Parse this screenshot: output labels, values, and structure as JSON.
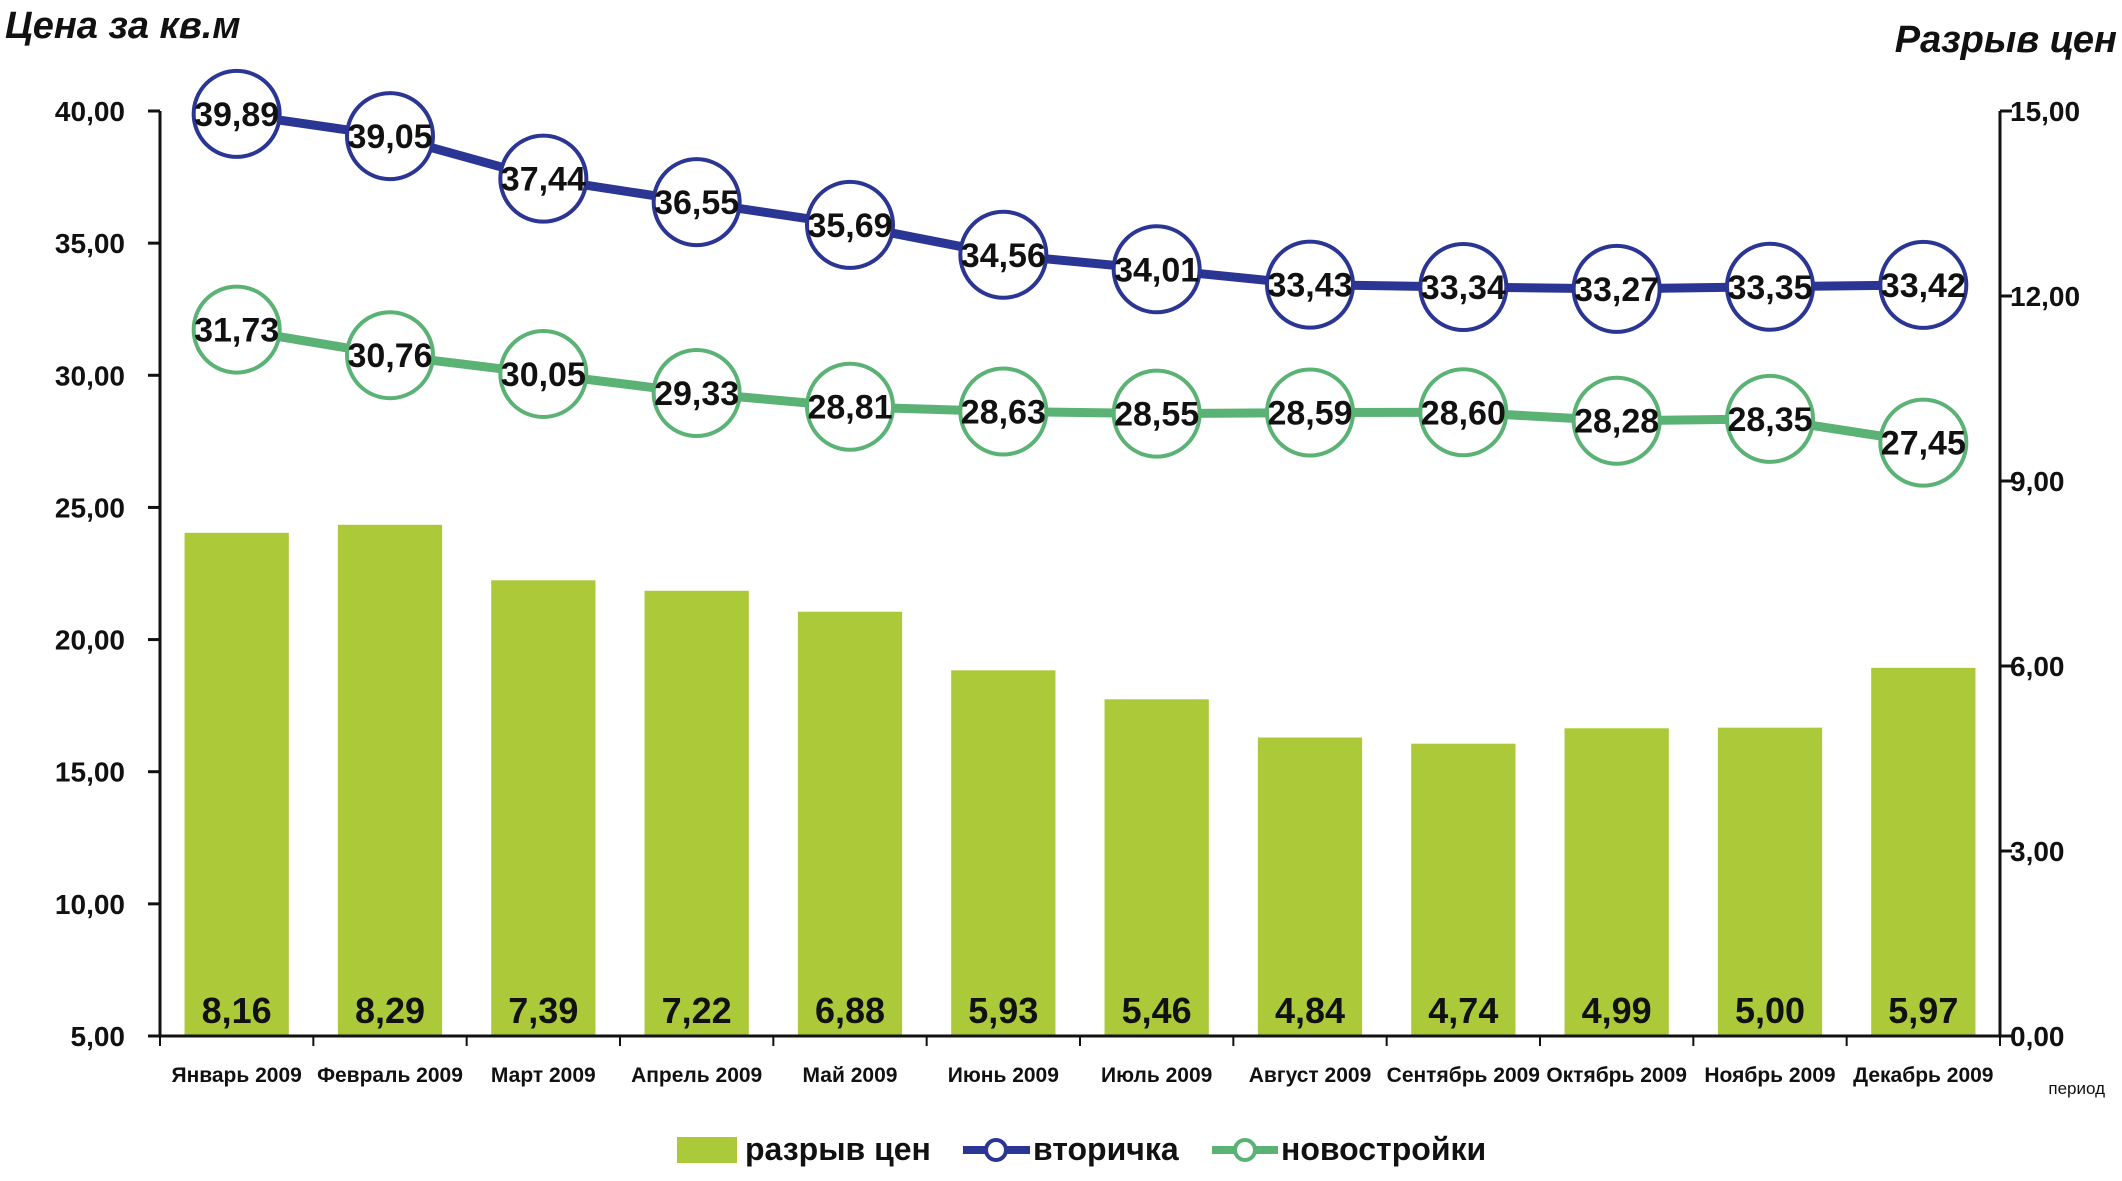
{
  "chart_data": {
    "type": "bar+line",
    "title": "",
    "left_axis_title": "Цена за кв.м",
    "right_axis_title": "Разрыв цен",
    "x_axis_note": "период",
    "categories": [
      "Январь 2009",
      "Февраль 2009",
      "Март 2009",
      "Апрель 2009",
      "Май 2009",
      "Июнь 2009",
      "Июль 2009",
      "Август 2009",
      "Сентябрь 2009",
      "Октябрь 2009",
      "Ноябрь 2009",
      "Декабрь 2009"
    ],
    "left_axis": {
      "min": 5,
      "max": 40,
      "ticks": [
        "5,00",
        "10,00",
        "15,00",
        "20,00",
        "25,00",
        "30,00",
        "35,00",
        "40,00"
      ]
    },
    "right_axis": {
      "min": 0,
      "max": 15,
      "ticks": [
        "0,00",
        "3,00",
        "6,00",
        "9,00",
        "12,00",
        "15,00"
      ]
    },
    "bars": {
      "name": "разрыв цен",
      "color": "#acc93a",
      "values": [
        8.16,
        8.29,
        7.39,
        7.22,
        6.88,
        5.93,
        5.46,
        4.84,
        4.74,
        4.99,
        5.0,
        5.97
      ],
      "labels": [
        "8,16",
        "8,29",
        "7,39",
        "7,22",
        "6,88",
        "5,93",
        "5,46",
        "4,84",
        "4,74",
        "4,99",
        "5,00",
        "5,97"
      ]
    },
    "series": [
      {
        "name": "вторичка",
        "color": "#2b3593",
        "values": [
          39.89,
          39.05,
          37.44,
          36.55,
          35.69,
          34.56,
          34.01,
          33.43,
          33.34,
          33.27,
          33.35,
          33.42
        ],
        "labels": [
          "39,89",
          "39,05",
          "37,44",
          "36,55",
          "35,69",
          "34,56",
          "34,01",
          "33,43",
          "33,34",
          "33,27",
          "33,35",
          "33,42"
        ]
      },
      {
        "name": "новостройки",
        "color": "#5bb275",
        "values": [
          31.73,
          30.76,
          30.05,
          29.33,
          28.81,
          28.63,
          28.55,
          28.59,
          28.6,
          28.28,
          28.35,
          27.45
        ],
        "labels": [
          "31,73",
          "30,76",
          "30,05",
          "29,33",
          "28,81",
          "28,63",
          "28,55",
          "28,59",
          "28,60",
          "28,28",
          "28,35",
          "27,45"
        ]
      }
    ],
    "legend": [
      "разрыв цен",
      "вторичка",
      "новостройки"
    ],
    "legend_position": "bottom"
  }
}
